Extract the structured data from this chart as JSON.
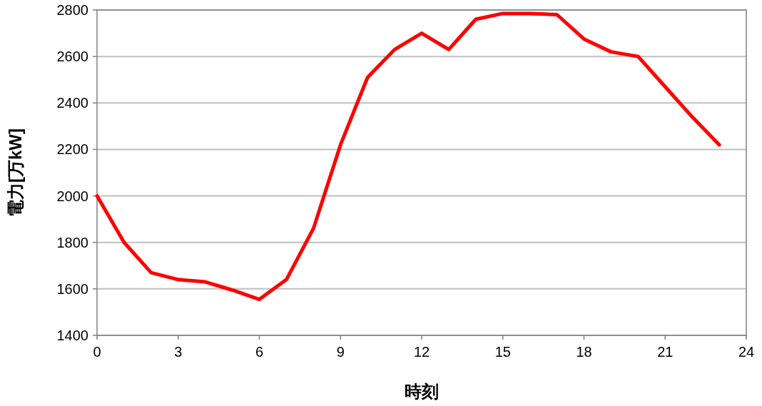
{
  "chart_data": {
    "type": "line",
    "xlabel": "時刻",
    "ylabel": "電力[万kW]",
    "x": [
      0,
      1,
      2,
      3,
      4,
      5,
      6,
      7,
      8,
      9,
      10,
      11,
      12,
      13,
      14,
      15,
      16,
      17,
      18,
      19,
      20,
      21,
      22,
      23
    ],
    "series": [
      {
        "color": "#ff0000",
        "values": [
          2000,
          1800,
          1670,
          1640,
          1630,
          1595,
          1555,
          1640,
          1860,
          2220,
          2510,
          2630,
          2700,
          2630,
          2760,
          2785,
          2785,
          2780,
          2675,
          2620,
          2600,
          2470,
          2340,
          2220
        ]
      }
    ],
    "xlim": [
      0,
      24
    ],
    "xticks": [
      0,
      3,
      6,
      9,
      12,
      15,
      18,
      21,
      24
    ],
    "ylim": [
      1400,
      2800
    ],
    "yticks": [
      1400,
      1600,
      1800,
      2000,
      2200,
      2400,
      2600,
      2800
    ],
    "grid": "y",
    "marker": "none",
    "line_style": "solid"
  }
}
